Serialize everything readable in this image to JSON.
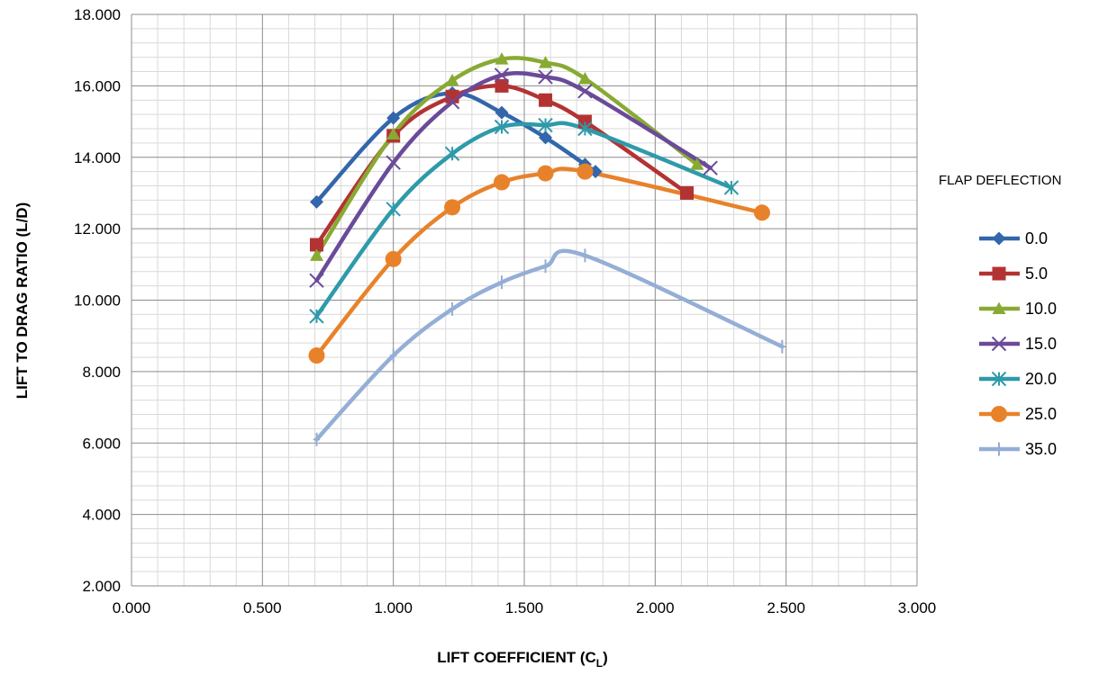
{
  "chart_data": {
    "type": "line",
    "title": "",
    "xlabel": "LIFT COEFFICIENT (C",
    "xlabel_subscript": "L",
    "xlabel_suffix": ")",
    "ylabel": "LIFT TO DRAG RATIO (L/D)",
    "xlim": [
      0,
      3
    ],
    "ylim": [
      2,
      18
    ],
    "x_ticks": [
      "0.000",
      "0.500",
      "1.000",
      "1.500",
      "2.000",
      "2.500",
      "3.000"
    ],
    "y_ticks": [
      "2.000",
      "4.000",
      "6.000",
      "8.000",
      "10.000",
      "12.000",
      "14.000",
      "16.000",
      "18.000"
    ],
    "grid": true,
    "legend_title": "FLAP DEFLECTION",
    "legend_position": "right",
    "series": [
      {
        "name": "0.0",
        "color": "#3366aa",
        "marker": "diamond",
        "x": [
          0.707,
          1.0,
          1.225,
          1.414,
          1.581,
          1.732,
          1.772
        ],
        "y": [
          12.75,
          15.1,
          15.8,
          15.25,
          14.55,
          13.8,
          13.6
        ]
      },
      {
        "name": "5.0",
        "color": "#b33333",
        "marker": "square",
        "x": [
          0.707,
          1.0,
          1.225,
          1.414,
          1.581,
          1.732,
          2.121
        ],
        "y": [
          11.55,
          14.6,
          15.7,
          16.0,
          15.6,
          15.0,
          13.0
        ]
      },
      {
        "name": "10.0",
        "color": "#88aa33",
        "marker": "triangle",
        "x": [
          0.707,
          1.0,
          1.225,
          1.414,
          1.581,
          1.732,
          2.16
        ],
        "y": [
          11.25,
          14.65,
          16.15,
          16.75,
          16.65,
          16.2,
          13.8
        ]
      },
      {
        "name": "15.0",
        "color": "#6a4a99",
        "marker": "x",
        "x": [
          0.707,
          1.0,
          1.225,
          1.414,
          1.581,
          1.732,
          2.211
        ],
        "y": [
          10.55,
          13.85,
          15.55,
          16.3,
          16.25,
          15.85,
          13.7
        ]
      },
      {
        "name": "20.0",
        "color": "#2e9aaa",
        "marker": "star",
        "x": [
          0.707,
          1.0,
          1.225,
          1.414,
          1.581,
          1.732,
          2.291
        ],
        "y": [
          9.55,
          12.55,
          14.1,
          14.85,
          14.9,
          14.8,
          13.15
        ]
      },
      {
        "name": "25.0",
        "color": "#e8822a",
        "marker": "circle",
        "x": [
          0.707,
          1.0,
          1.225,
          1.414,
          1.581,
          1.732,
          2.408
        ],
        "y": [
          8.45,
          11.15,
          12.6,
          13.3,
          13.55,
          13.6,
          12.45
        ]
      },
      {
        "name": "35.0",
        "color": "#95aed6",
        "marker": "plus",
        "x": [
          0.707,
          1.0,
          1.225,
          1.414,
          1.581,
          1.732,
          2.485
        ],
        "y": [
          6.1,
          8.45,
          9.75,
          10.5,
          10.95,
          11.25,
          8.7
        ]
      }
    ]
  }
}
